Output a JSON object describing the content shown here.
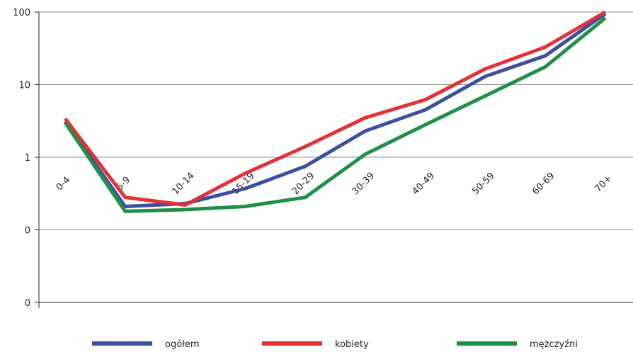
{
  "chart_data": {
    "type": "line",
    "categories": [
      "0-4",
      "5-9",
      "10-14",
      "15-19",
      "20-29",
      "30-39",
      "40-49",
      "50-59",
      "60-69",
      "70+"
    ],
    "series": [
      {
        "name": "ogółem",
        "color": "#3c4f9c",
        "values": [
          3.1,
          0.21,
          0.23,
          0.37,
          0.75,
          2.3,
          4.5,
          13,
          25,
          95
        ]
      },
      {
        "name": "kobiety",
        "color": "#e03237",
        "values": [
          3.4,
          0.28,
          0.22,
          0.6,
          1.4,
          3.5,
          6.2,
          16.5,
          33,
          100
        ]
      },
      {
        "name": "mężczyźni",
        "color": "#1f8f47",
        "values": [
          3.0,
          0.18,
          0.19,
          0.21,
          0.28,
          1.1,
          2.8,
          7,
          17.6,
          83
        ]
      }
    ],
    "ylim": [
      0.01,
      100
    ],
    "log_scale": true,
    "yticks": [
      {
        "value": 0.01,
        "label": "0"
      },
      {
        "value": 0.1,
        "label": "0"
      },
      1,
      10,
      100
    ],
    "grid": true,
    "legend": "bottom"
  }
}
